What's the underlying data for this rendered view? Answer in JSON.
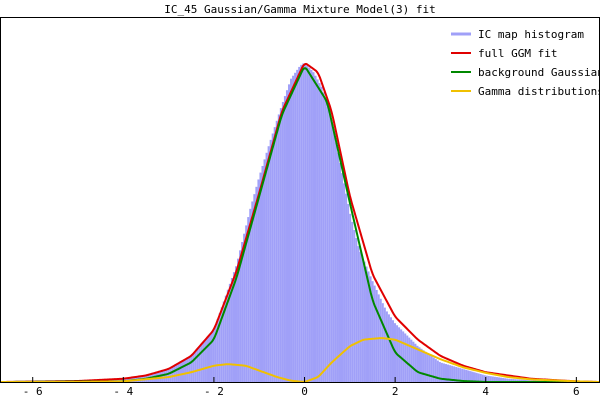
{
  "chart_data": {
    "type": "area",
    "title": "IC_45 Gaussian/Gamma Mixture Model(3) fit",
    "xlabel": "",
    "ylabel": "",
    "xlim": [
      -6.7,
      6.5
    ],
    "ylim": [
      0,
      1.0
    ],
    "grid": false,
    "legend_position": "top-right",
    "x_ticks": [
      {
        "value": -6,
        "label": "- 6"
      },
      {
        "value": -4,
        "label": "- 4"
      },
      {
        "value": -2,
        "label": "- 2"
      },
      {
        "value": 0,
        "label": "0"
      },
      {
        "value": 2,
        "label": "2"
      },
      {
        "value": 4,
        "label": "4"
      },
      {
        "value": 6,
        "label": "6"
      }
    ],
    "series": [
      {
        "name": "IC map histogram",
        "style": "histogram",
        "color": "#a0a0f8",
        "x": [
          -5.0,
          -4.0,
          -3.5,
          -3.0,
          -2.5,
          -2.0,
          -1.8,
          -1.5,
          -1.2,
          -1.0,
          -0.8,
          -0.5,
          -0.3,
          -0.1,
          0.0,
          0.2,
          0.4,
          0.6,
          0.8,
          1.0,
          1.2,
          1.5,
          1.8,
          2.0,
          2.5,
          3.0,
          3.5,
          4.0,
          4.5,
          5.0,
          6.0
        ],
        "y": [
          0.0,
          0.01,
          0.02,
          0.04,
          0.08,
          0.16,
          0.24,
          0.36,
          0.53,
          0.63,
          0.72,
          0.85,
          0.93,
          0.97,
          0.98,
          0.95,
          0.9,
          0.8,
          0.66,
          0.52,
          0.41,
          0.31,
          0.22,
          0.18,
          0.11,
          0.06,
          0.04,
          0.02,
          0.01,
          0.005,
          0.0
        ]
      },
      {
        "name": "full GGM fit",
        "style": "line",
        "color": "#e00000",
        "x": [
          -6.7,
          -5.0,
          -4.0,
          -3.5,
          -3.0,
          -2.5,
          -2.0,
          -1.5,
          -1.0,
          -0.5,
          0.0,
          0.3,
          0.6,
          1.0,
          1.5,
          2.0,
          2.5,
          3.0,
          3.5,
          4.0,
          4.5,
          5.0,
          6.0,
          6.5
        ],
        "y": [
          0.0,
          0.003,
          0.01,
          0.02,
          0.04,
          0.08,
          0.16,
          0.34,
          0.58,
          0.83,
          0.98,
          0.95,
          0.83,
          0.57,
          0.33,
          0.2,
          0.13,
          0.08,
          0.05,
          0.03,
          0.02,
          0.01,
          0.002,
          0.0
        ]
      },
      {
        "name": "background Gaussian",
        "style": "line",
        "color": "#008800",
        "x": [
          -6.7,
          -4.0,
          -3.5,
          -3.0,
          -2.5,
          -2.0,
          -1.5,
          -1.0,
          -0.5,
          0.0,
          0.5,
          1.0,
          1.5,
          2.0,
          2.5,
          3.0,
          3.5,
          4.0,
          6.5
        ],
        "y": [
          0.0,
          0.002,
          0.01,
          0.025,
          0.06,
          0.13,
          0.32,
          0.57,
          0.82,
          0.97,
          0.86,
          0.55,
          0.25,
          0.09,
          0.03,
          0.01,
          0.003,
          0.0,
          0.0
        ]
      },
      {
        "name": "Gamma distributions",
        "style": "line",
        "color": "#f0c000",
        "x": [
          -6.7,
          -5.0,
          -4.0,
          -3.0,
          -2.5,
          -2.0,
          -1.7,
          -1.3,
          -1.0,
          -0.6,
          -0.3,
          0.0,
          0.3,
          0.6,
          1.0,
          1.3,
          1.7,
          2.0,
          2.5,
          3.0,
          3.5,
          4.0,
          4.5,
          5.0,
          6.0,
          6.5
        ],
        "y": [
          0.0,
          0.0,
          0.002,
          0.015,
          0.03,
          0.05,
          0.055,
          0.05,
          0.035,
          0.015,
          0.004,
          0.0,
          0.015,
          0.06,
          0.11,
          0.13,
          0.135,
          0.13,
          0.1,
          0.07,
          0.045,
          0.028,
          0.015,
          0.008,
          0.002,
          0.0
        ]
      }
    ]
  }
}
